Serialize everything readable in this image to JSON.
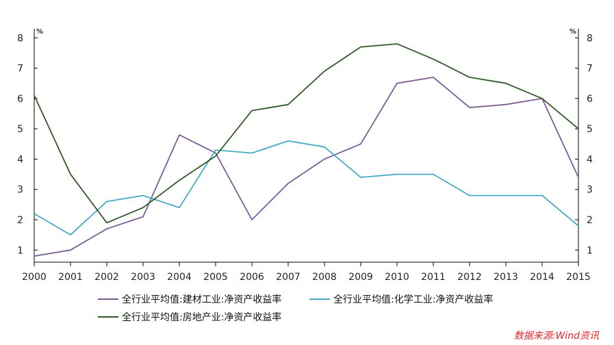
{
  "chart_data": {
    "type": "line",
    "x": [
      "2000",
      "2001",
      "2002",
      "2003",
      "2004",
      "2005",
      "2006",
      "2007",
      "2008",
      "2009",
      "2010",
      "2011",
      "2012",
      "2013",
      "2014",
      "2015"
    ],
    "series": [
      {
        "name": "全行业平均值:建材工业:净资产收益率",
        "color": "#7b5c96",
        "values": [
          0.8,
          1.0,
          1.7,
          2.1,
          4.8,
          4.2,
          2.0,
          3.2,
          4.0,
          4.5,
          6.5,
          6.7,
          5.7,
          5.8,
          6.0,
          3.4
        ]
      },
      {
        "name": "全行业平均值:化学工业:净资产收益率",
        "color": "#45a9c4",
        "values": [
          2.2,
          1.5,
          2.6,
          2.8,
          2.4,
          4.3,
          4.2,
          4.6,
          4.4,
          3.4,
          3.5,
          3.5,
          2.8,
          2.8,
          2.8,
          1.8
        ]
      },
      {
        "name": "全行业平均值:房地产业:净资产收益率",
        "color": "#2e5a26",
        "values": [
          6.1,
          3.5,
          1.9,
          2.4,
          3.3,
          4.1,
          5.6,
          5.8,
          6.9,
          7.7,
          7.8,
          7.3,
          6.7,
          6.5,
          6.0,
          5.0
        ]
      }
    ],
    "yticks": [
      1,
      2,
      3,
      4,
      5,
      6,
      7,
      8
    ],
    "ylim": [
      0.6,
      8.3
    ],
    "left_unit": "%",
    "right_unit": "%",
    "grid": false,
    "legend_position": "bottom"
  },
  "source_note": "数据来源:Wind资讯"
}
